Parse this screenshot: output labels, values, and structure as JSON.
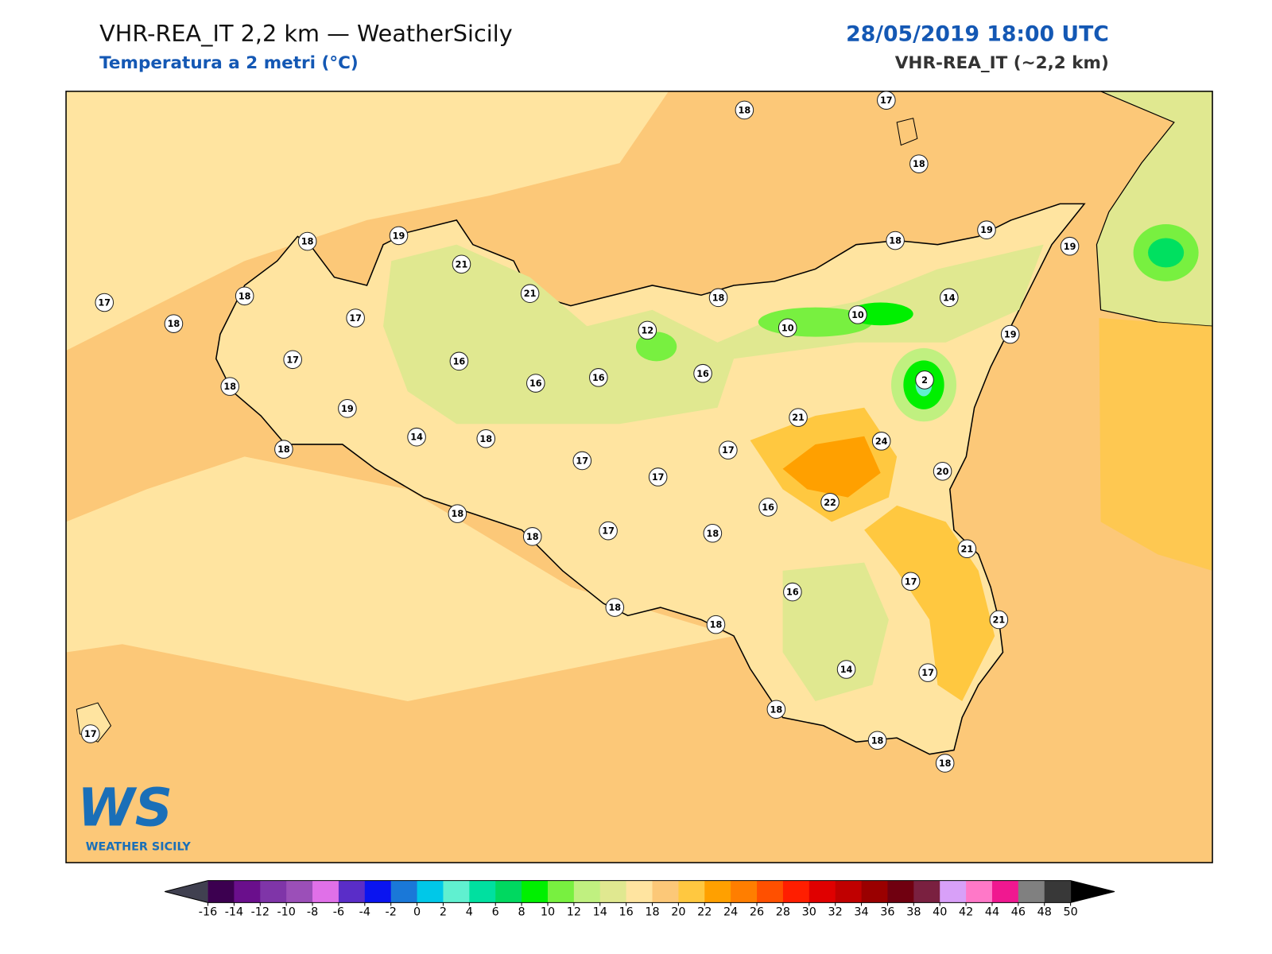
{
  "header": {
    "title": "VHR-REA_IT 2,2 km — WeatherSicily",
    "subtitle": "Temperatura a 2 metri (°C)",
    "datetime": "28/05/2019 18:00 UTC",
    "model": "VHR-REA_IT (~2,2 km)"
  },
  "map": {
    "stations": [
      18,
      17,
      18,
      18,
      19,
      21,
      21,
      17,
      18,
      18,
      17,
      17,
      18,
      19,
      18,
      14,
      18,
      16,
      16,
      16,
      16,
      12,
      18,
      10,
      10,
      18,
      19,
      19,
      14,
      19,
      2,
      21,
      24,
      20,
      17,
      17,
      17,
      16,
      22,
      18,
      18,
      17,
      18,
      21,
      17,
      16,
      18,
      18,
      21,
      14,
      17,
      18,
      18,
      18,
      17
    ]
  },
  "colorbar": {
    "ticks": [
      -16,
      -14,
      -12,
      -10,
      -8,
      -6,
      -4,
      -2,
      0,
      2,
      4,
      6,
      8,
      10,
      12,
      14,
      16,
      18,
      20,
      22,
      24,
      26,
      28,
      30,
      32,
      34,
      36,
      38,
      40,
      42,
      44,
      46,
      48,
      50
    ],
    "colors": [
      "#3c0050",
      "#6a0f8c",
      "#7f35a8",
      "#9b4fb8",
      "#e070e8",
      "#5a2dc8",
      "#0a14f0",
      "#1a78d8",
      "#00c8e8",
      "#60f0d0",
      "#00e0a0",
      "#00d860",
      "#00f000",
      "#78f040",
      "#c0f080",
      "#e0e890",
      "#ffe4a0",
      "#fcc878",
      "#ffc840",
      "#ffa000",
      "#ff7e00",
      "#ff5000",
      "#ff1e00",
      "#e00000",
      "#c00000",
      "#9a0000",
      "#700010",
      "#7a2040",
      "#d8a0f8",
      "#ff78c8",
      "#f01890",
      "#808080",
      "#383838"
    ],
    "under_color": "#404050",
    "over_color": "#000000"
  },
  "logo": {
    "text": "WS",
    "caption": "WEATHER SICILY"
  }
}
